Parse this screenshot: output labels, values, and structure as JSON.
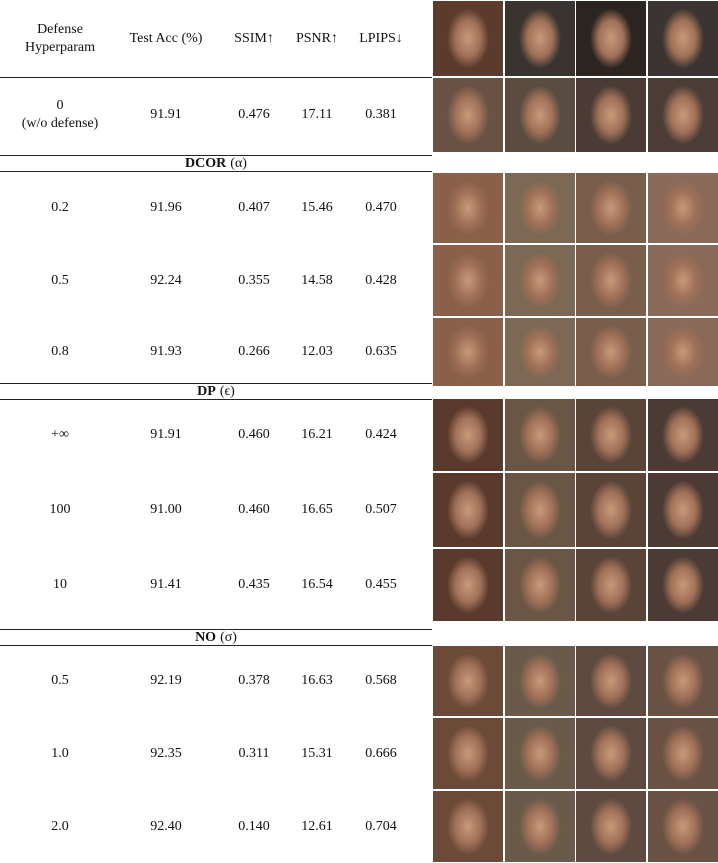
{
  "table": {
    "header": [
      [
        "Defense",
        "Hyperparam"
      ],
      "Test Acc (%)",
      "SSIM↑",
      "PSNR↑",
      "LPIPS↓"
    ],
    "baseline": [
      [
        "0",
        "(w/o defense)"
      ],
      "91.91",
      "0.476",
      "17.11",
      "0.381"
    ],
    "sections": [
      {
        "label": "DCOR",
        "param": "(α)",
        "rows": [
          [
            "0.2",
            "91.96",
            "0.407",
            "15.46",
            "0.470"
          ],
          [
            "0.5",
            "92.24",
            "0.355",
            "14.58",
            "0.428"
          ],
          [
            "0.8",
            "91.93",
            "0.266",
            "12.03",
            "0.635"
          ]
        ]
      },
      {
        "label": "DP",
        "param": "(ϵ)",
        "rows": [
          [
            "+∞",
            "91.91",
            "0.460",
            "16.21",
            "0.424"
          ],
          [
            "100",
            "91.00",
            "0.460",
            "16.65",
            "0.507"
          ],
          [
            "10",
            "91.41",
            "0.435",
            "16.54",
            "0.455"
          ]
        ]
      },
      {
        "label": "NO",
        "param": "(σ)",
        "rows": [
          [
            "0.5",
            "92.19",
            "0.378",
            "16.63",
            "0.568"
          ],
          [
            "1.0",
            "92.35",
            "0.311",
            "15.31",
            "0.666"
          ],
          [
            "2.0",
            "92.40",
            "0.140",
            "12.61",
            "0.704"
          ]
        ]
      }
    ]
  }
}
